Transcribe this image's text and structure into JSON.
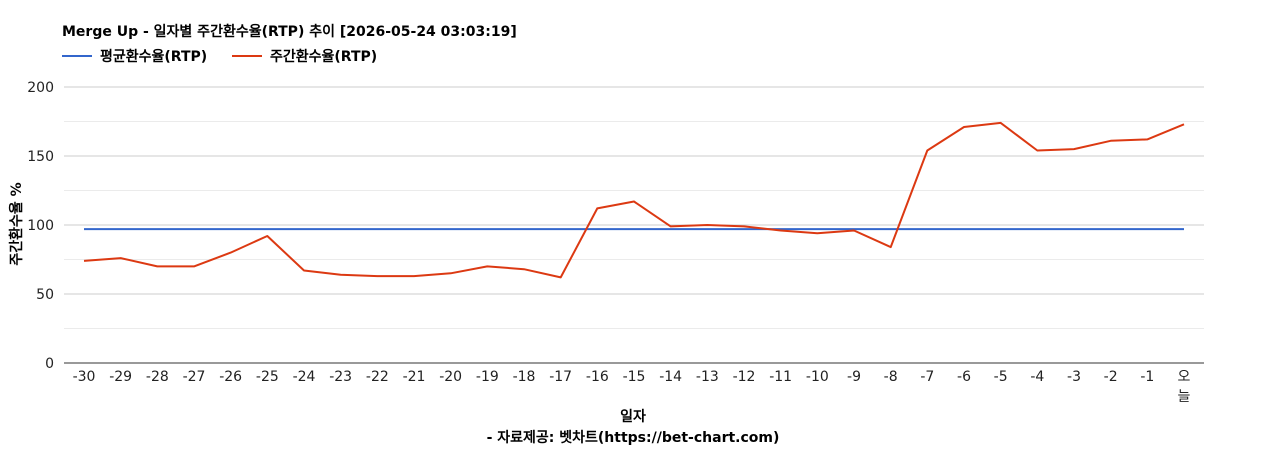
{
  "chart_data": {
    "type": "line",
    "title": "Merge Up - 일자별 주간환수율(RTP) 추이 [2026-05-24 03:03:19]",
    "xlabel": "일자",
    "ylabel": "주간환수율 %",
    "footer": "- 자료제공: 벳차트(https://bet-chart.com)",
    "legend_position": "top-left",
    "grid": true,
    "ylim": [
      0,
      200
    ],
    "yticks": [
      "0",
      "50",
      "100",
      "150",
      "200"
    ],
    "categories": [
      "-30",
      "-29",
      "-28",
      "-27",
      "-26",
      "-25",
      "-24",
      "-23",
      "-22",
      "-21",
      "-20",
      "-19",
      "-18",
      "-17",
      "-16",
      "-15",
      "-14",
      "-13",
      "-12",
      "-11",
      "-10",
      "-9",
      "-8",
      "-7",
      "-6",
      "-5",
      "-4",
      "-3",
      "-2",
      "-1",
      "오늘"
    ],
    "series": [
      {
        "name": "평균환수율(RTP)",
        "color": "#3366cc",
        "values": [
          97,
          97,
          97,
          97,
          97,
          97,
          97,
          97,
          97,
          97,
          97,
          97,
          97,
          97,
          97,
          97,
          97,
          97,
          97,
          97,
          97,
          97,
          97,
          97,
          97,
          97,
          97,
          97,
          97,
          97,
          97
        ]
      },
      {
        "name": "주간환수율(RTP)",
        "color": "#dc3912",
        "values": [
          74,
          76,
          70,
          70,
          80,
          92,
          67,
          64,
          63,
          63,
          65,
          70,
          68,
          62,
          112,
          117,
          99,
          100,
          99,
          96,
          94,
          96,
          84,
          154,
          171,
          174,
          154,
          155,
          161,
          162,
          173
        ]
      }
    ]
  }
}
